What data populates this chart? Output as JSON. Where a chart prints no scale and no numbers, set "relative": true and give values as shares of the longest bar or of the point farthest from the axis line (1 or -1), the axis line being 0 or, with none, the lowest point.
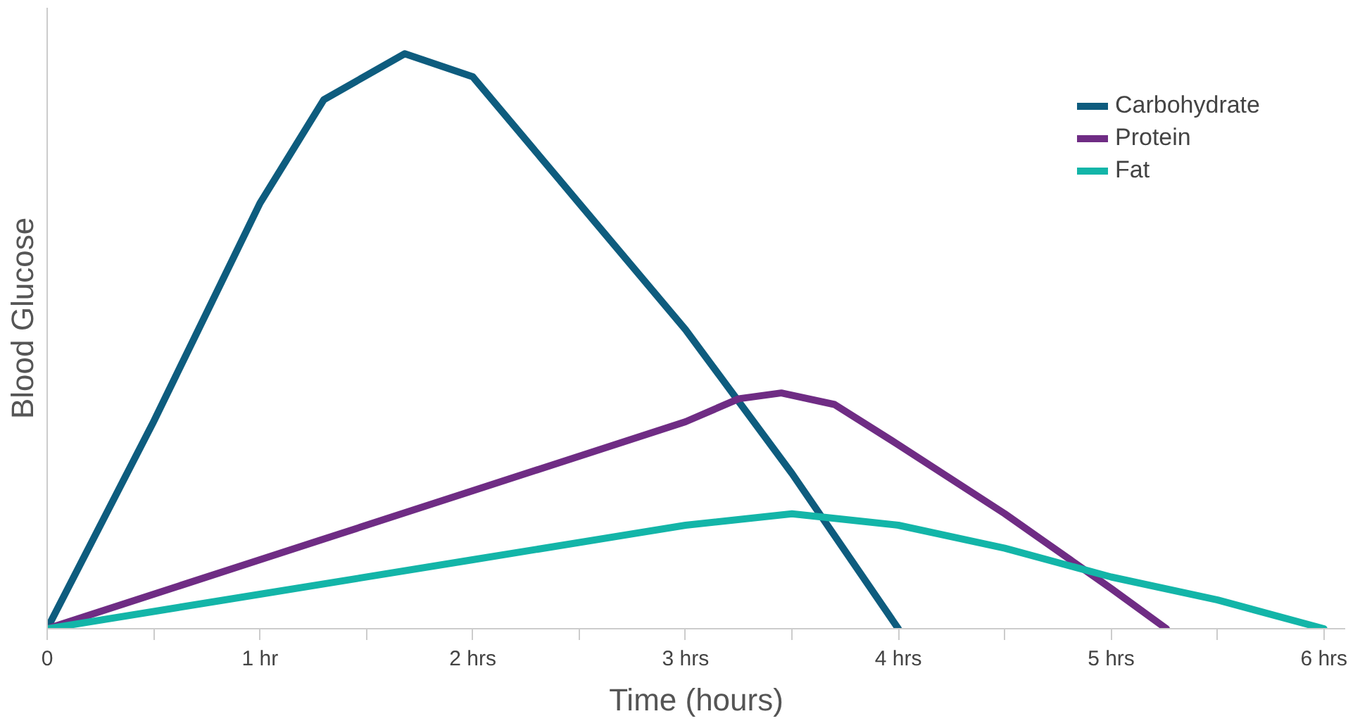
{
  "chart_data": {
    "type": "line",
    "relative": true,
    "xlabel": "Time (hours)",
    "ylabel": "Blood Glucose",
    "xlim": [
      0,
      6.1
    ],
    "xticks": [
      0,
      {
        "value": 0.5,
        "label": null
      },
      {
        "value": 1,
        "label": "1 hr"
      },
      {
        "value": 1.5,
        "label": null
      },
      {
        "value": 2,
        "label": "2 hrs"
      },
      {
        "value": 2.5,
        "label": null
      },
      {
        "value": 3,
        "label": "3 hrs"
      },
      {
        "value": 3.5,
        "label": null
      },
      {
        "value": 4,
        "label": "4 hrs"
      },
      {
        "value": 4.5,
        "label": null
      },
      {
        "value": 5,
        "label": "5 hrs"
      },
      {
        "value": 5.5,
        "label": null
      },
      {
        "value": 6,
        "label": "6 hrs"
      }
    ],
    "legend": "top right",
    "grid": false,
    "line_style": "solid",
    "series": [
      {
        "name": "Carbohydrate",
        "color": "#0e5c7e",
        "x": [
          0,
          0.5,
          1,
          1.3,
          1.68,
          2,
          2.5,
          3,
          3.5,
          4
        ],
        "values": [
          0,
          0.36,
          0.74,
          0.92,
          1.0,
          0.96,
          0.74,
          0.52,
          0.27,
          0
        ]
      },
      {
        "name": "Protein",
        "color": "#6f2c84",
        "x": [
          0,
          1,
          2,
          3,
          3.25,
          3.45,
          3.7,
          4,
          4.5,
          5,
          5.26
        ],
        "values": [
          0,
          0.12,
          0.24,
          0.36,
          0.4,
          0.41,
          0.39,
          0.32,
          0.2,
          0.07,
          0
        ]
      },
      {
        "name": "Fat",
        "color": "#13b5a8",
        "x": [
          0,
          1,
          2,
          3,
          3.5,
          4,
          4.5,
          5,
          5.5,
          6
        ],
        "values": [
          0,
          0.06,
          0.12,
          0.18,
          0.2,
          0.18,
          0.14,
          0.09,
          0.05,
          0
        ]
      }
    ]
  }
}
